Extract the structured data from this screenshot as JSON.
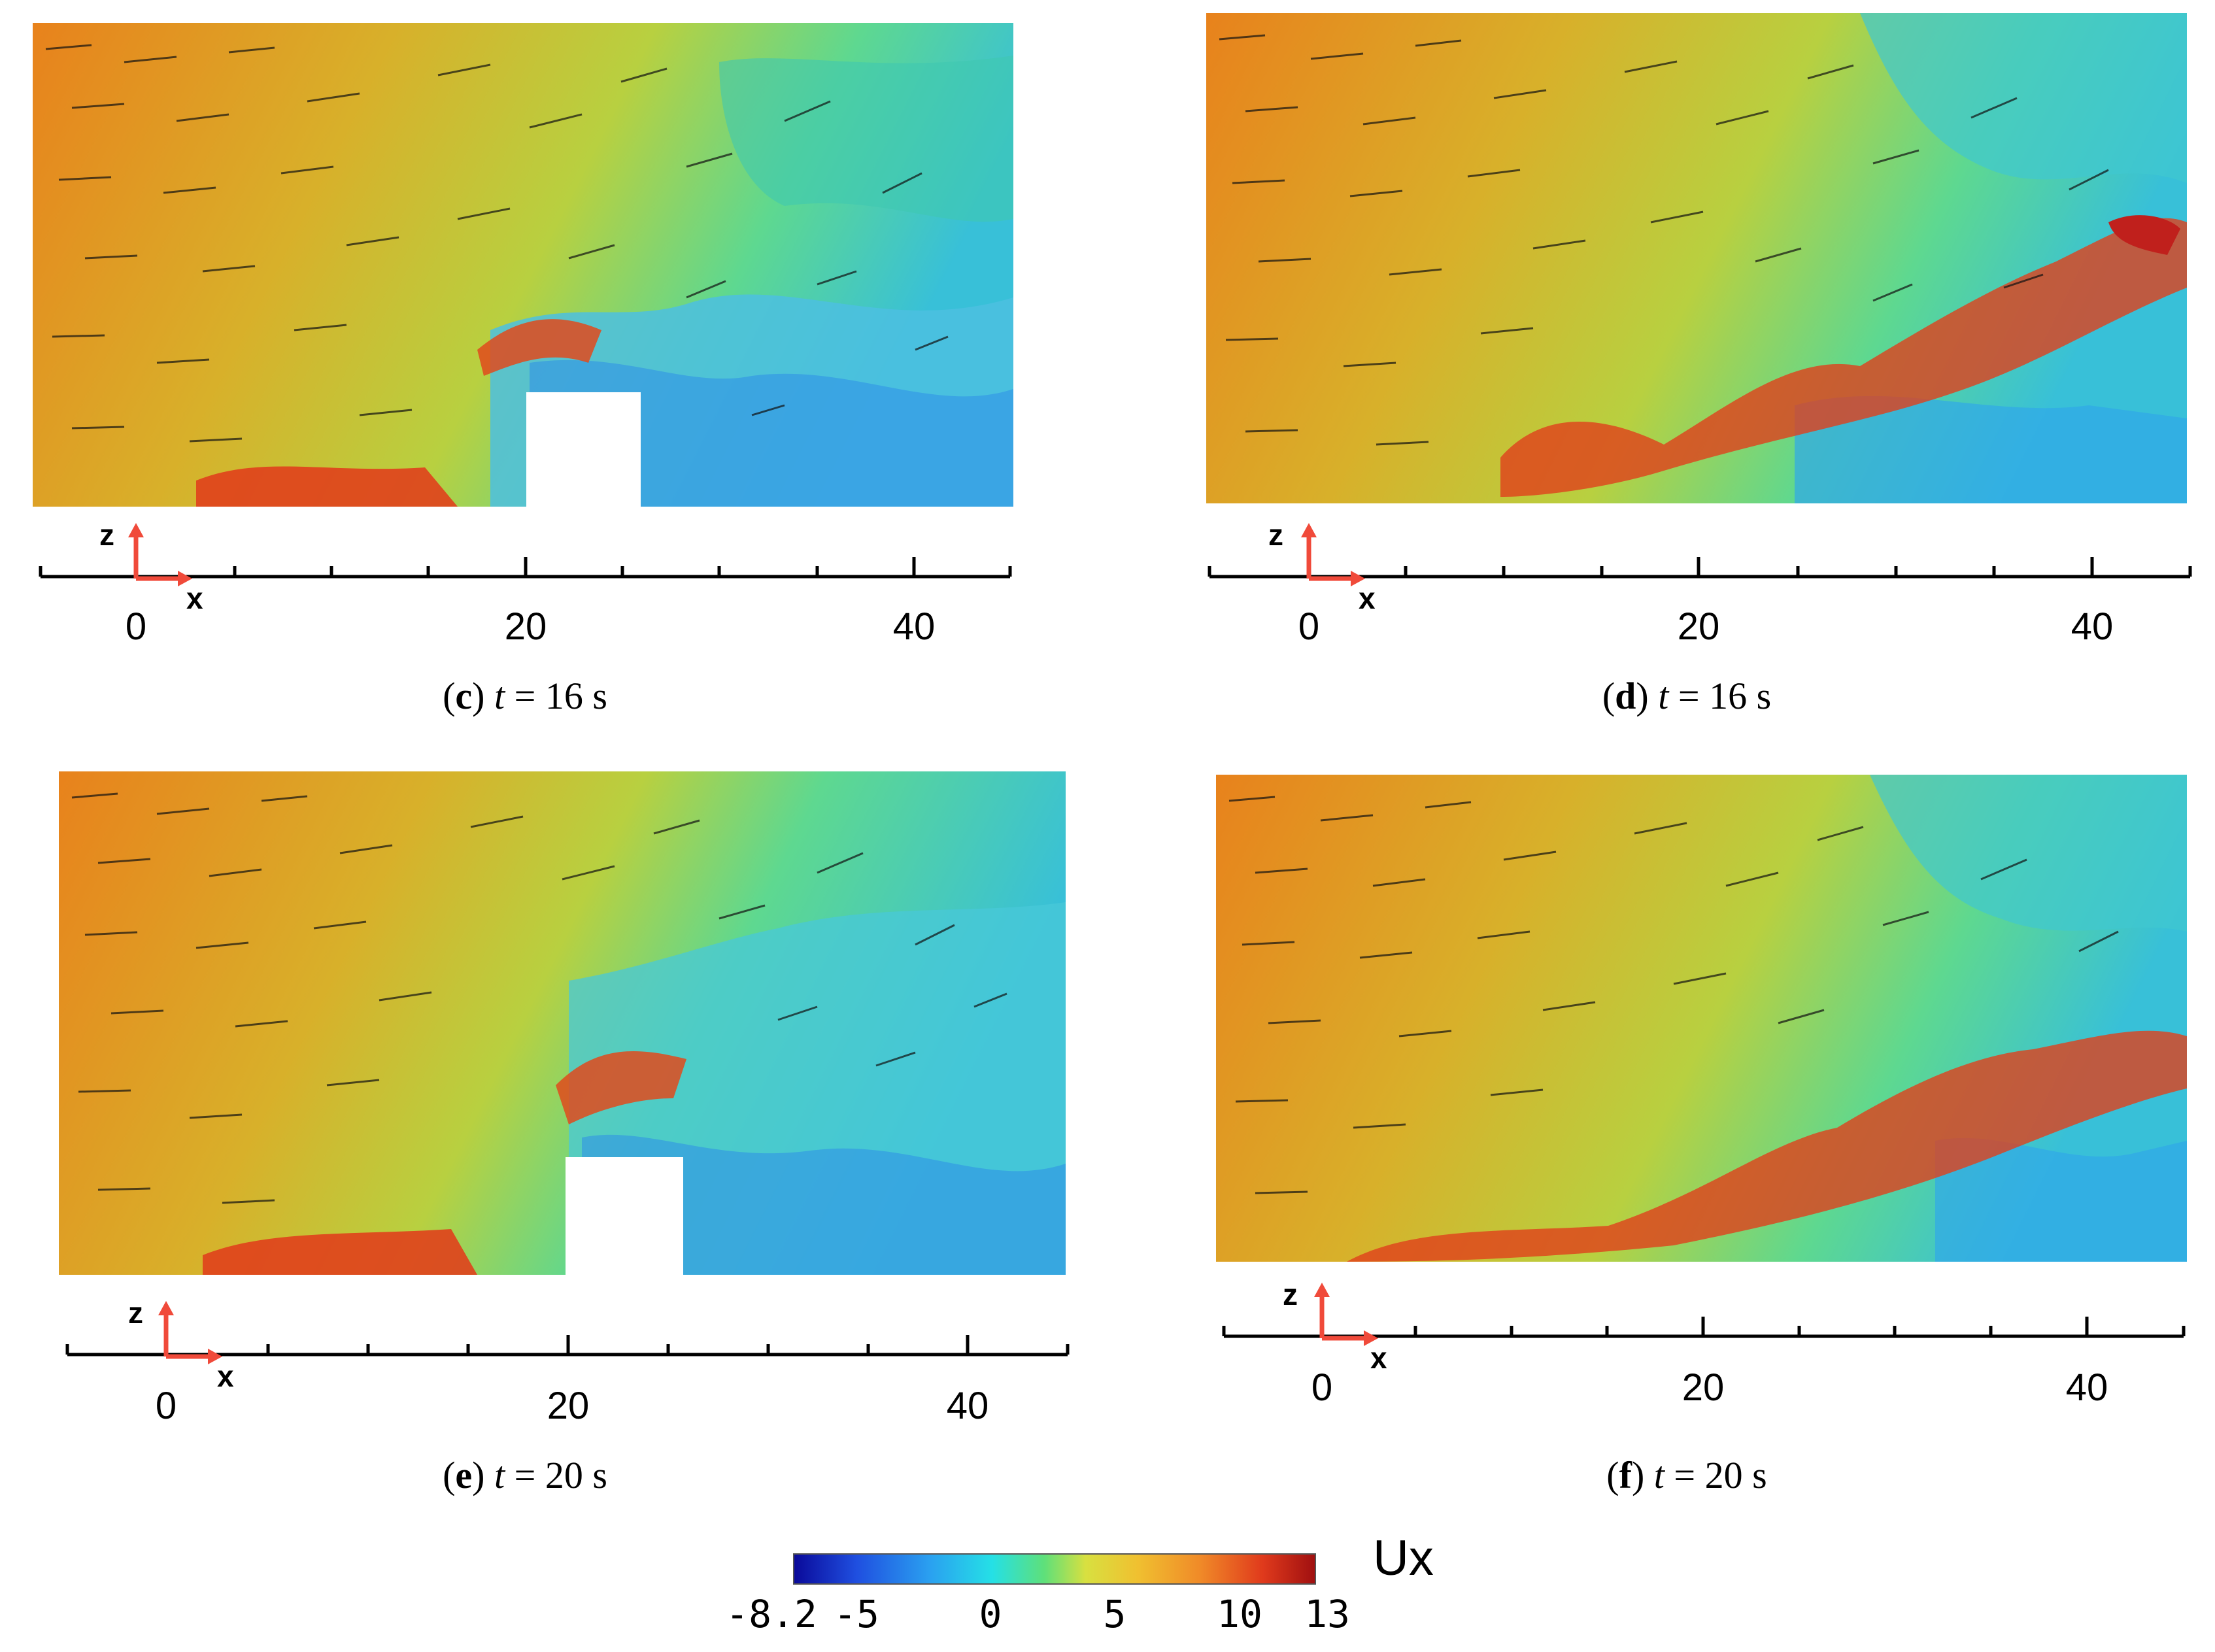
{
  "panels": [
    {
      "id": "c",
      "caption_letter": "c",
      "caption_var": "t",
      "caption_eq": " = 16 s",
      "has_block": true,
      "ticks": [
        "0",
        "20",
        "40"
      ],
      "axis_z": "z",
      "axis_x": "x"
    },
    {
      "id": "d",
      "caption_letter": "d",
      "caption_var": "t",
      "caption_eq": " = 16 s",
      "has_block": false,
      "ticks": [
        "0",
        "20",
        "40"
      ],
      "axis_z": "z",
      "axis_x": "x"
    },
    {
      "id": "e",
      "caption_letter": "e",
      "caption_var": "t",
      "caption_eq": " = 20 s",
      "has_block": true,
      "ticks": [
        "0",
        "20",
        "40"
      ],
      "axis_z": "z",
      "axis_x": "x"
    },
    {
      "id": "f",
      "caption_letter": "f",
      "caption_var": "t",
      "caption_eq": " = 20 s",
      "has_block": false,
      "ticks": [
        "0",
        "20",
        "40"
      ],
      "axis_z": "z",
      "axis_x": "x"
    }
  ],
  "colorbar": {
    "title": "Ux",
    "labels": [
      "-8.2",
      "-5",
      "0",
      "5",
      "10",
      "13"
    ],
    "min": -8.2,
    "max": 13,
    "colormap": [
      "#0a0a9a",
      "#1f4fe0",
      "#2aa0f0",
      "#25e0e6",
      "#5ee07a",
      "#d8e040",
      "#f0c030",
      "#f08a28",
      "#e03a1c",
      "#a01010"
    ]
  },
  "axis_color": "#f04a3a"
}
